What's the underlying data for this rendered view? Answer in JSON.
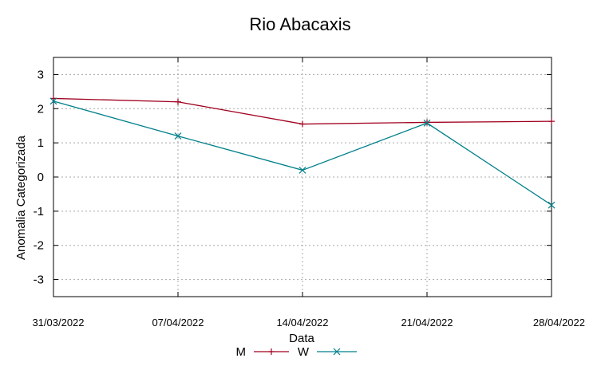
{
  "chart_data": {
    "type": "line",
    "title": "Rio Abacaxis",
    "xlabel": "Data",
    "ylabel": "Anomalia Categorizada",
    "categories": [
      "31/03/2022",
      "07/04/2022",
      "14/04/2022",
      "21/04/2022",
      "28/04/2022"
    ],
    "yticks": [
      "3",
      "2",
      "1",
      "0",
      "-1",
      "-2",
      "-3"
    ],
    "ylim": [
      -3.5,
      3.5
    ],
    "grid": true,
    "legend_position": "bottom-center",
    "series": [
      {
        "name": "M",
        "color": "#a0001e",
        "marker": "plus",
        "values": [
          2.3,
          2.2,
          1.55,
          1.6,
          1.63
        ]
      },
      {
        "name": "W",
        "color": "#00808a",
        "marker": "cross",
        "values": [
          2.22,
          1.2,
          0.2,
          1.58,
          -0.82
        ]
      }
    ]
  }
}
